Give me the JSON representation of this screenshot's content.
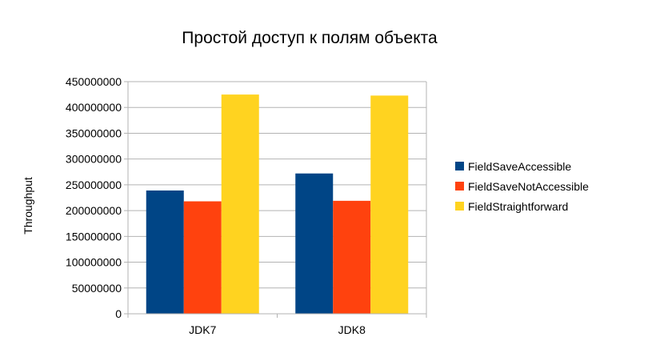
{
  "chart_data": {
    "type": "bar",
    "title": "Простой доступ к полям объекта",
    "xlabel": "",
    "ylabel": "Throughput",
    "categories": [
      "JDK7",
      "JDK8"
    ],
    "series": [
      {
        "name": "FieldSaveAccessible",
        "color": "#004586",
        "values": [
          239000000,
          272000000
        ]
      },
      {
        "name": "FieldSaveNotAccessible",
        "color": "#ff420e",
        "values": [
          218000000,
          219000000
        ]
      },
      {
        "name": "FieldStraightforward",
        "color": "#ffd320",
        "values": [
          425000000,
          423000000
        ]
      }
    ],
    "ylim": [
      0,
      450000000
    ],
    "yticks": [
      "0",
      "50000000",
      "100000000",
      "150000000",
      "200000000",
      "250000000",
      "300000000",
      "350000000",
      "400000000",
      "450000000"
    ],
    "grid": true,
    "legend": "right"
  }
}
